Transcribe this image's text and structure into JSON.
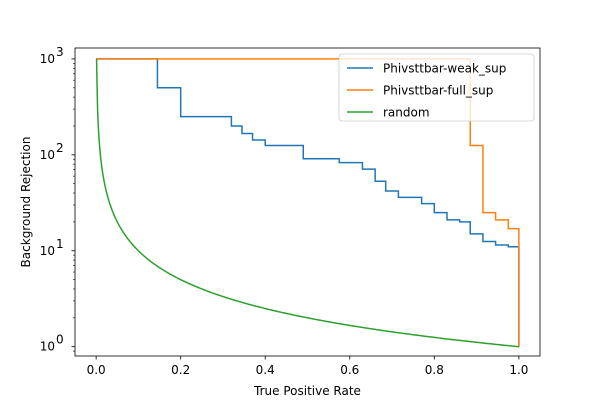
{
  "chart_data": {
    "type": "line",
    "title": "",
    "xlabel": "True Positive Rate",
    "ylabel": "Background Rejection",
    "xlim": [
      -0.05,
      1.05
    ],
    "ylim": [
      0.8,
      1300
    ],
    "yscale": "log",
    "grid": false,
    "legend_position": "top-right",
    "xticks": [
      0.0,
      0.2,
      0.4,
      0.6,
      0.8,
      1.0
    ],
    "xtick_labels": [
      "0.0",
      "0.2",
      "0.4",
      "0.6",
      "0.8",
      "1.0"
    ],
    "yticks": [
      1,
      10,
      100,
      1000
    ],
    "ytick_labels": [
      "10",
      "10",
      "10",
      "10"
    ],
    "ytick_exponents": [
      "0",
      "1",
      "2",
      "3"
    ],
    "series": [
      {
        "name": "Phivsttbar-weak_sup",
        "color": "#1f77b4",
        "points": [
          [
            0.0,
            1000
          ],
          [
            0.145,
            1000
          ],
          [
            0.145,
            500
          ],
          [
            0.2,
            500
          ],
          [
            0.2,
            250
          ],
          [
            0.32,
            250
          ],
          [
            0.32,
            200
          ],
          [
            0.345,
            200
          ],
          [
            0.345,
            167
          ],
          [
            0.37,
            167
          ],
          [
            0.37,
            143
          ],
          [
            0.4,
            143
          ],
          [
            0.4,
            125
          ],
          [
            0.49,
            125
          ],
          [
            0.49,
            91
          ],
          [
            0.575,
            91
          ],
          [
            0.575,
            83
          ],
          [
            0.63,
            83
          ],
          [
            0.63,
            71
          ],
          [
            0.66,
            71
          ],
          [
            0.66,
            53
          ],
          [
            0.685,
            53
          ],
          [
            0.685,
            42
          ],
          [
            0.715,
            42
          ],
          [
            0.715,
            36
          ],
          [
            0.77,
            36
          ],
          [
            0.77,
            31
          ],
          [
            0.8,
            31
          ],
          [
            0.8,
            25
          ],
          [
            0.83,
            25
          ],
          [
            0.83,
            21
          ],
          [
            0.86,
            21
          ],
          [
            0.86,
            20
          ],
          [
            0.885,
            20
          ],
          [
            0.885,
            15
          ],
          [
            0.915,
            15
          ],
          [
            0.915,
            12.5
          ],
          [
            0.945,
            12.5
          ],
          [
            0.945,
            11.5
          ],
          [
            0.975,
            11.5
          ],
          [
            0.975,
            11
          ],
          [
            1.0,
            11
          ],
          [
            1.0,
            1
          ]
        ]
      },
      {
        "name": "Phivsttbar-full_sup",
        "color": "#ff7f0e",
        "points": [
          [
            0.0,
            1000
          ],
          [
            0.885,
            1000
          ],
          [
            0.885,
            125
          ],
          [
            0.915,
            125
          ],
          [
            0.915,
            25
          ],
          [
            0.945,
            25
          ],
          [
            0.945,
            21
          ],
          [
            0.975,
            21
          ],
          [
            0.975,
            17
          ],
          [
            1.0,
            17
          ],
          [
            1.0,
            1
          ]
        ]
      },
      {
        "name": "random",
        "color": "#2ca02c",
        "function": "1/x",
        "x_range": [
          0.001,
          1.0
        ]
      }
    ]
  }
}
